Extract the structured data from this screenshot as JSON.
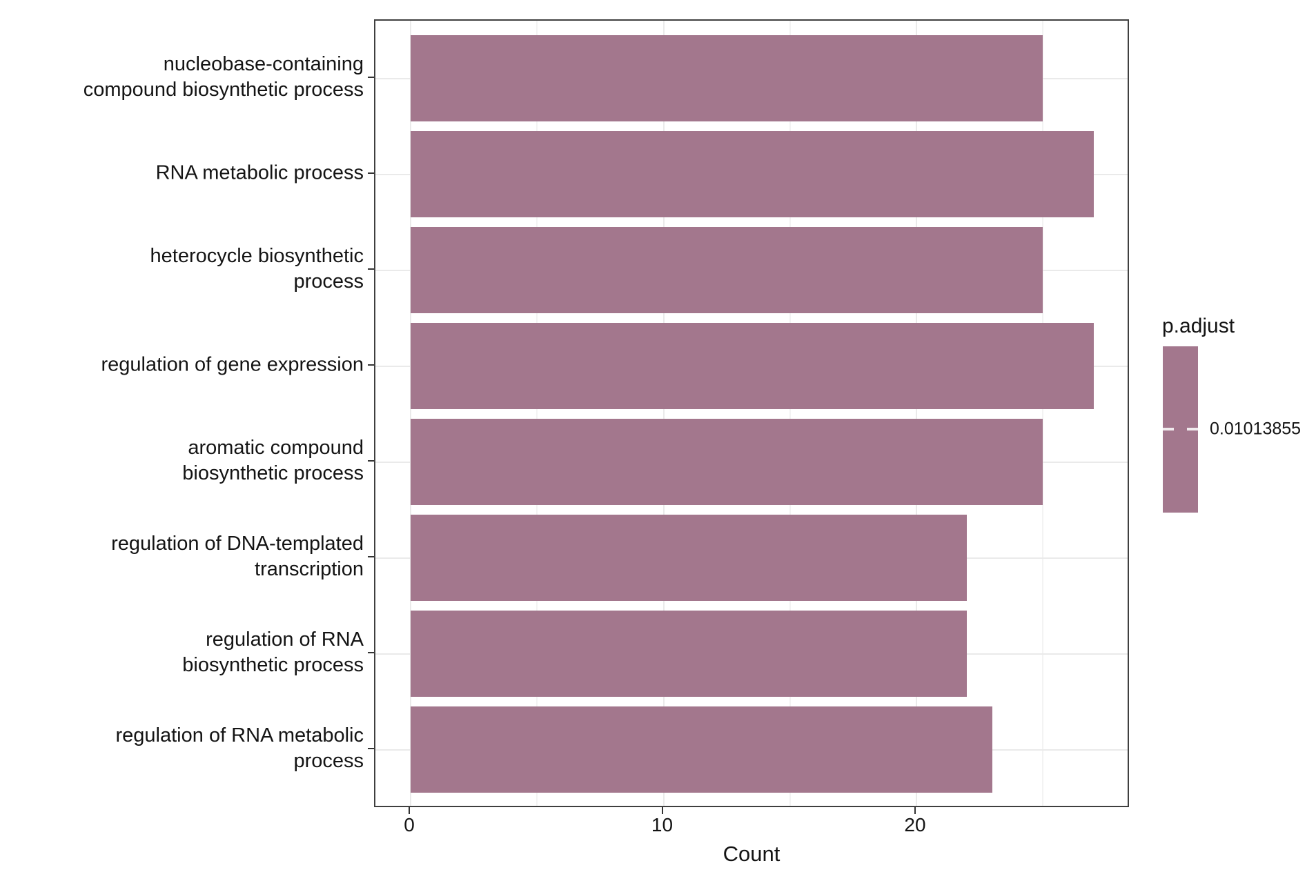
{
  "chart_data": {
    "type": "bar",
    "orientation": "horizontal",
    "title": "",
    "xlabel": "Count",
    "ylabel": "",
    "categories": [
      "nucleobase-containing\ncompound biosynthetic process",
      "RNA metabolic process",
      "heterocycle biosynthetic\nprocess",
      "regulation of gene expression",
      "aromatic compound\nbiosynthetic process",
      "regulation of DNA-templated\ntranscription",
      "regulation of RNA\nbiosynthetic process",
      "regulation of RNA metabolic\nprocess"
    ],
    "values": [
      25,
      27,
      25,
      27,
      25,
      22,
      22,
      23
    ],
    "x_ticks_major": [
      0,
      10,
      20
    ],
    "x_ticks_minor": [
      5,
      15,
      25
    ],
    "xlim": [
      -1.4,
      28.5
    ],
    "bar_color": "#A3778D",
    "grid": true,
    "legend_position": "right",
    "legend": {
      "title": "p.adjust",
      "tick_label": "0.01013855",
      "color": "#A3778D"
    }
  }
}
